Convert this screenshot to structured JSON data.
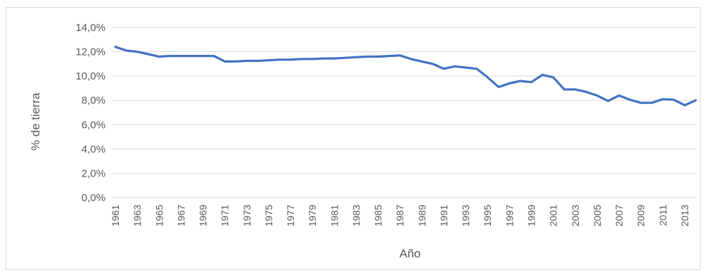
{
  "chart_data": {
    "type": "line",
    "xlabel": "Año",
    "ylabel": "% de tierra",
    "ylim": [
      0,
      14
    ],
    "yticks": [
      "0,0%",
      "2,0%",
      "4,0%",
      "6,0%",
      "8,0%",
      "10,0%",
      "12,0%",
      "14,0%"
    ],
    "xtick_labels": [
      "1961",
      "1963",
      "1965",
      "1967",
      "1969",
      "1971",
      "1973",
      "1975",
      "1977",
      "1979",
      "1981",
      "1983",
      "1985",
      "1987",
      "1989",
      "1991",
      "1993",
      "1995",
      "1997",
      "1999",
      "2001",
      "2003",
      "2005",
      "2007",
      "2009",
      "2011",
      "2013"
    ],
    "grid": true,
    "legend": "none",
    "series_color": "#4472c4",
    "x": [
      1961,
      1962,
      1963,
      1964,
      1965,
      1966,
      1967,
      1968,
      1969,
      1970,
      1971,
      1972,
      1973,
      1974,
      1975,
      1976,
      1977,
      1978,
      1979,
      1980,
      1981,
      1982,
      1983,
      1984,
      1985,
      1986,
      1987,
      1988,
      1989,
      1990,
      1991,
      1992,
      1993,
      1994,
      1995,
      1996,
      1997,
      1998,
      1999,
      2000,
      2001,
      2002,
      2003,
      2004,
      2005,
      2006,
      2007,
      2008,
      2009,
      2010,
      2011,
      2012,
      2013,
      2014
    ],
    "series": [
      {
        "values": [
          12.4,
          12.1,
          12.0,
          11.8,
          11.6,
          11.65,
          11.65,
          11.65,
          11.65,
          11.65,
          11.2,
          11.2,
          11.25,
          11.25,
          11.3,
          11.35,
          11.35,
          11.4,
          11.4,
          11.45,
          11.45,
          11.5,
          11.55,
          11.6,
          11.6,
          11.65,
          11.7,
          11.4,
          11.2,
          11.0,
          10.6,
          10.8,
          10.7,
          10.6,
          9.9,
          9.1,
          9.4,
          9.6,
          9.5,
          10.1,
          9.9,
          8.9,
          8.9,
          8.7,
          8.4,
          7.95,
          8.4,
          8.05,
          7.8,
          7.8,
          8.1,
          8.05,
          7.6,
          8.0
        ]
      }
    ]
  }
}
